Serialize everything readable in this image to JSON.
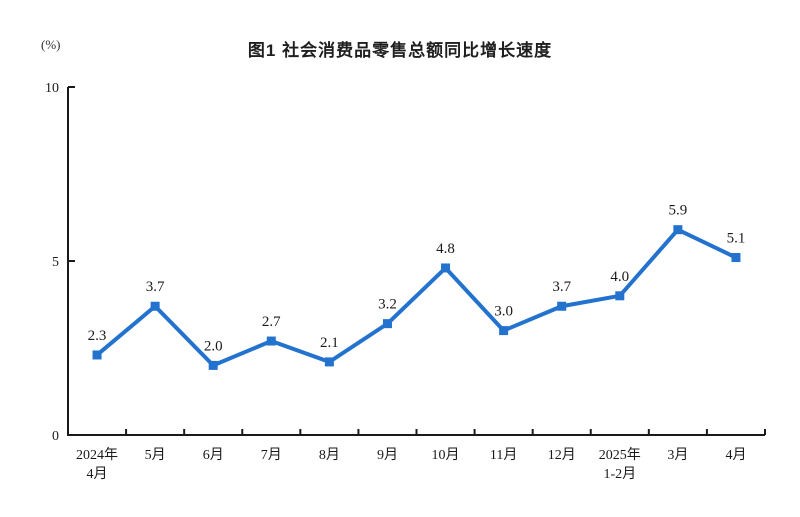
{
  "page": {
    "unit_label": "(%)"
  },
  "chart_data": {
    "type": "line",
    "title": "图1 社会消费品零售总额同比增长速度",
    "unit": "%",
    "categories": [
      "2024年\n4月",
      "5月",
      "6月",
      "7月",
      "8月",
      "9月",
      "10月",
      "11月",
      "12月",
      "2025年\n1-2月",
      "3月",
      "4月"
    ],
    "values": [
      2.3,
      3.7,
      2.0,
      2.7,
      2.1,
      3.2,
      4.8,
      3.0,
      3.7,
      4.0,
      5.9,
      5.1
    ],
    "xlabel": "",
    "ylabel": "(%)",
    "ylim": [
      0,
      10
    ],
    "yticks": [
      0,
      5,
      10
    ],
    "grid": false,
    "legend_position": "none",
    "line_color": "#2272CE",
    "axis_color": "#1a1a1a",
    "label_color": "#1a1a1a",
    "marker": "square"
  }
}
